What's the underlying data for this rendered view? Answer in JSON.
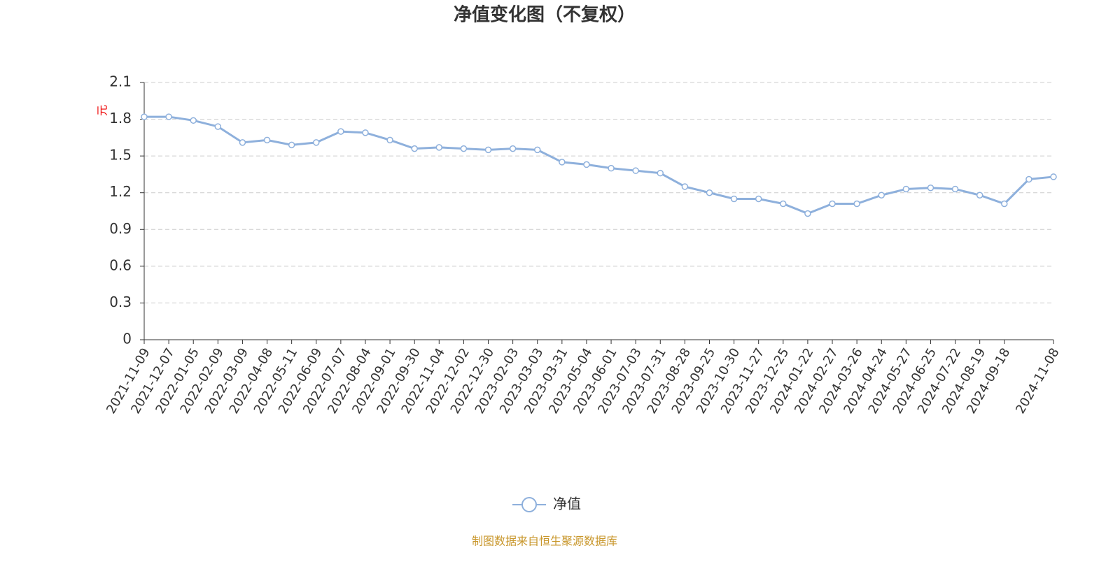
{
  "chart_data": {
    "type": "line",
    "title": "净值变化图（不复权）",
    "y_unit": "元",
    "categories": [
      "2021-11-09",
      "2021-12-07",
      "2022-01-05",
      "2022-02-09",
      "2022-03-09",
      "2022-04-08",
      "2022-05-11",
      "2022-06-09",
      "2022-07-07",
      "2022-08-04",
      "2022-09-01",
      "2022-09-30",
      "2022-11-04",
      "2022-12-02",
      "2022-12-30",
      "2023-02-03",
      "2023-03-03",
      "2023-03-31",
      "2023-05-04",
      "2023-06-01",
      "2023-07-03",
      "2023-07-31",
      "2023-08-28",
      "2023-09-25",
      "2023-10-30",
      "2023-11-27",
      "2023-12-25",
      "2024-01-22",
      "2024-02-27",
      "2024-03-26",
      "2024-04-24",
      "2024-05-27",
      "2024-06-25",
      "2024-07-22",
      "2024-08-19",
      "2024-09-18",
      null,
      "2024-11-08"
    ],
    "series": [
      {
        "name": "净值",
        "color": "#8eb0dc",
        "values": [
          1.82,
          1.82,
          1.79,
          1.74,
          1.61,
          1.63,
          1.59,
          1.61,
          1.7,
          1.69,
          1.63,
          1.56,
          1.57,
          1.56,
          1.55,
          1.56,
          1.55,
          1.45,
          1.43,
          1.4,
          1.38,
          1.36,
          1.25,
          1.2,
          1.15,
          1.15,
          1.11,
          1.03,
          1.11,
          1.11,
          1.18,
          1.23,
          1.24,
          1.23,
          1.18,
          1.11,
          1.31,
          1.33
        ]
      }
    ],
    "ylim": [
      0,
      2.1
    ],
    "yticks": [
      0,
      0.3,
      0.6,
      0.9,
      1.2,
      1.5,
      1.8,
      2.1
    ],
    "grid": true,
    "footer": "制图数据来自恒生聚源数据库"
  }
}
